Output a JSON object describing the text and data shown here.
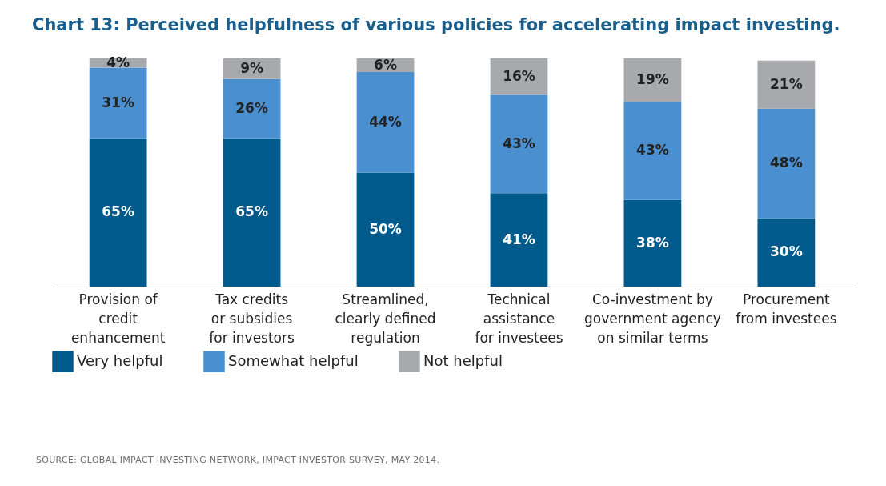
{
  "chart_data": {
    "type": "bar",
    "stacked": true,
    "title": "Chart 13: Perceived helpfulness of various policies for accelerating impact investing.",
    "categories": [
      "Provision of\ncredit\nenhancement",
      "Tax credits\nor subsidies\nfor investors",
      "Streamlined,\nclearly defined\nregulation",
      "Technical\nassistance\nfor investees",
      "Co-investment by\ngovernment agency\non similar terms",
      "Procurement\nfrom investees"
    ],
    "series": [
      {
        "name": "Very helpful",
        "color": "#005a8c",
        "values": [
          65,
          65,
          50,
          41,
          38,
          30
        ],
        "value_labels": [
          "65%",
          "65%",
          "50%",
          "41%",
          "38%",
          "30%"
        ]
      },
      {
        "name": "Somewhat helpful",
        "color": "#4a90d0",
        "values": [
          31,
          26,
          44,
          43,
          43,
          48
        ],
        "value_labels": [
          "31%",
          "26%",
          "44%",
          "43%",
          "43%",
          "48%"
        ]
      },
      {
        "name": "Not helpful",
        "color": "#a7a9ac",
        "values": [
          4,
          9,
          6,
          16,
          19,
          21
        ],
        "value_labels": [
          "4%",
          "9%",
          "6%",
          "16%",
          "19%",
          "21%"
        ]
      }
    ],
    "legend": "bottom",
    "annotations": [
      "SOURCE: GLOBAL IMPACT INVESTING NETWORK, IMPACT INVESTOR SURVEY, MAY 2014."
    ]
  }
}
